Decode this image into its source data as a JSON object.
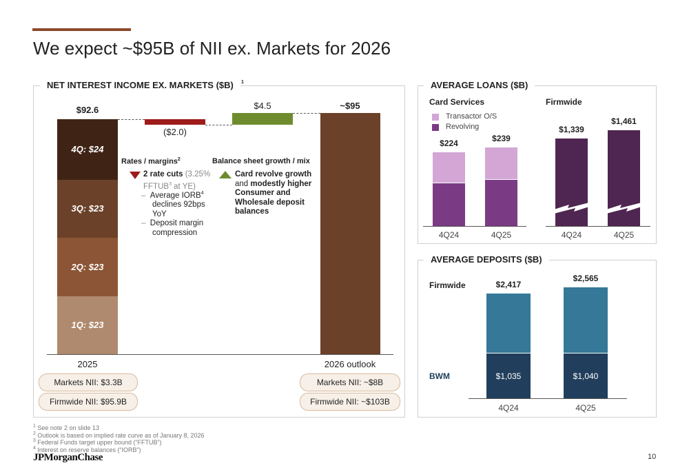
{
  "header": {
    "title": "We expect ~$95B of NII ex. Markets for 2026"
  },
  "nii": {
    "title": "NET INTEREST INCOME EX. MARKETS",
    "title_sup": "1",
    "title_unit": " ($B)",
    "total_2025_label": "$92.6",
    "rates_label": "($2.0)",
    "growth_label": "$4.5",
    "total_2026_label": "~$95",
    "x_2025": "2025",
    "x_2026": "2026 outlook",
    "rates_heading": "Rates / margins",
    "rates_heading_sup": "2",
    "rates_bullet_bold": "2 rate cuts",
    "rates_bullet_grey1": " (3.25%",
    "rates_bullet_grey2": "FFTUB",
    "rates_bullet_grey2_sup": "3",
    "rates_bullet_grey3": " at YE)",
    "rates_sub1a": "Average IORB",
    "rates_sub1_sup": "4",
    "rates_sub1b": "declines 92bps",
    "rates_sub1c": "YoY",
    "rates_sub2a": "Deposit margin",
    "rates_sub2b": "compression",
    "growth_heading": "Balance sheet growth / mix",
    "growth_l1": "Card revolve growth",
    "growth_l2a": "and ",
    "growth_l2b": "modestly higher",
    "growth_l3": "Consumer and",
    "growth_l4": "Wholesale deposit",
    "growth_l5": "balances",
    "pills": {
      "markets_2025": "Markets NII: $3.3B",
      "firmwide_2025": "Firmwide NII: $95.9B",
      "markets_2026": "Markets NII: ~$8B",
      "firmwide_2026": "Firmwide NII: ~$103B"
    }
  },
  "loans": {
    "title": "AVERAGE LOANS ($B)",
    "card_heading": "Card Services",
    "firmwide_heading": "Firmwide",
    "legend_transactor": "Transactor O/S",
    "legend_revolving": "Revolving"
  },
  "deposits": {
    "title": "AVERAGE DEPOSITS ($B)",
    "firmwide_label": "Firmwide",
    "bwm_label": "BWM"
  },
  "footnotes": [
    "See note 2 on slide 13",
    "Outlook is based on implied rate curve as of January 8, 2026",
    "Federal Funds target upper bound (“FFTUB”)",
    "Interest on reserve balances (“IORB”)"
  ],
  "footnote_marks": [
    "1",
    "2",
    "3",
    "4"
  ],
  "logo": "JPMorganChase",
  "page_number": "10",
  "colors": {
    "accent": "#8b4a2b",
    "q1": "#b08a6e",
    "q2": "#8c5535",
    "q3": "#6b4129",
    "q4": "#3f2416",
    "outlook": "#6b4129",
    "negative": "#9e1b1b",
    "positive": "#6e8c2e",
    "transactor": "#d3a6d6",
    "revolving": "#7b3a84",
    "firmwide_loans": "#4f2651",
    "deposits_firmwide": "#357897",
    "deposits_bwm": "#213f5c"
  },
  "chart_data": [
    {
      "type": "waterfall",
      "title": "NET INTEREST INCOME EX. MARKETS ($B)",
      "categories": [
        "2025",
        "Rates / margins",
        "Balance sheet growth / mix",
        "2026 outlook"
      ],
      "start_stack": [
        {
          "name": "1Q",
          "value": 23,
          "label": "1Q: $23"
        },
        {
          "name": "2Q",
          "value": 23,
          "label": "2Q: $23"
        },
        {
          "name": "3Q",
          "value": 23,
          "label": "3Q: $23"
        },
        {
          "name": "4Q",
          "value": 24,
          "label": "4Q: $24"
        }
      ],
      "start_total": 92.6,
      "deltas": [
        -2.0,
        4.5
      ],
      "end_total": 95
    },
    {
      "type": "bar",
      "stacked": true,
      "title": "Card Services",
      "categories": [
        "4Q24",
        "4Q25"
      ],
      "totals": [
        224,
        239
      ],
      "total_labels": [
        "$224",
        "$239"
      ],
      "series": [
        {
          "name": "Revolving",
          "values": [
            130,
            140
          ]
        },
        {
          "name": "Transactor O/S",
          "values": [
            94,
            99
          ]
        }
      ],
      "legend": "top-left"
    },
    {
      "type": "bar",
      "title": "Firmwide",
      "categories": [
        "4Q24",
        "4Q25"
      ],
      "values": [
        1339,
        1461
      ],
      "value_labels": [
        "$1,339",
        "$1,461"
      ],
      "broken_axis": true
    },
    {
      "type": "bar",
      "stacked": true,
      "title": "AVERAGE DEPOSITS ($B)",
      "categories": [
        "4Q24",
        "4Q25"
      ],
      "totals": [
        2417,
        2565
      ],
      "total_labels": [
        "$2,417",
        "$2,565"
      ],
      "series": [
        {
          "name": "BWM",
          "values": [
            1035,
            1040
          ],
          "labels": [
            "$1,035",
            "$1,040"
          ]
        },
        {
          "name": "Firmwide",
          "values": [
            1382,
            1525
          ]
        }
      ]
    }
  ]
}
